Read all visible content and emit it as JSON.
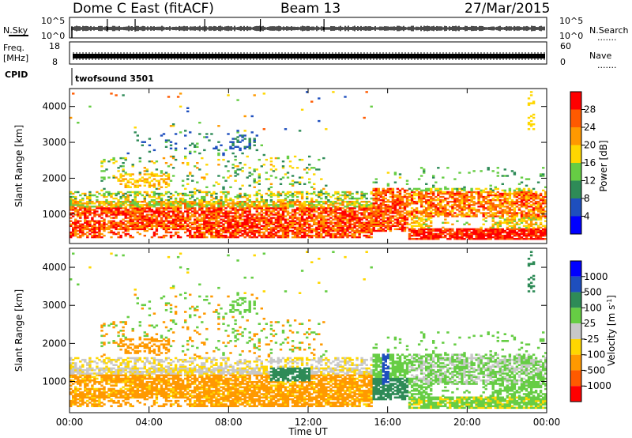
{
  "header": {
    "title": "Dome C East (fitACF)",
    "beam": "Beam 13",
    "date": "27/Mar/2015"
  },
  "status_panels": {
    "left_label_1": "N.Sky",
    "left_ticks_1": [
      "10^5",
      "10^0"
    ],
    "right_label_1": "N.Search",
    "right_ticks_1": [
      "10^5",
      "10^0"
    ],
    "left_label_2a": "Freq.",
    "left_label_2b": "[MHz]",
    "left_ticks_2": [
      "18",
      "8"
    ],
    "right_label_2": "Nave",
    "right_ticks_2": [
      "60",
      "0"
    ],
    "cpid_label": "CPID",
    "cpid_value": "twofsound 3501",
    "dotted": "......."
  },
  "colors": {
    "power_scale": [
      "#0000ff",
      "#1e4fbe",
      "#2e8b57",
      "#66cd44",
      "#ffd700",
      "#ff9900",
      "#ff5a00",
      "#ff0000"
    ],
    "velocity_scale": [
      "#0000ff",
      "#1e4fbe",
      "#2e8b57",
      "#66cd44",
      "#c8c8c8",
      "#ffd700",
      "#ff9900",
      "#ff5a00",
      "#ff0000"
    ]
  },
  "chart_data": [
    {
      "type": "heatmap",
      "name": "power",
      "ylabel": "Slant Range [km]",
      "yticks": [
        "4000",
        "3000",
        "2000",
        "1000"
      ],
      "ylim": [
        180,
        4500
      ],
      "xlim": [
        0,
        24
      ],
      "colorbar_label": "Power [dB]",
      "colorbar_ticks": [
        "28",
        "24",
        "20",
        "16",
        "12",
        "8",
        "4"
      ],
      "colorbar_range": [
        0,
        32
      ]
    },
    {
      "type": "heatmap",
      "name": "velocity",
      "ylabel": "Slant Range [km]",
      "yticks": [
        "4000",
        "3000",
        "2000",
        "1000"
      ],
      "ylim": [
        180,
        4500
      ],
      "xlim": [
        0,
        24
      ],
      "xlabel": "Time UT",
      "xticks": [
        "00:00",
        "04:00",
        "08:00",
        "12:00",
        "16:00",
        "20:00",
        "00:00"
      ],
      "colorbar_label": "Velocity [m s^-1]",
      "colorbar_ticks": [
        "1000",
        "500",
        "100",
        "25",
        "-25",
        "-100",
        "-500",
        "-1000"
      ]
    }
  ]
}
